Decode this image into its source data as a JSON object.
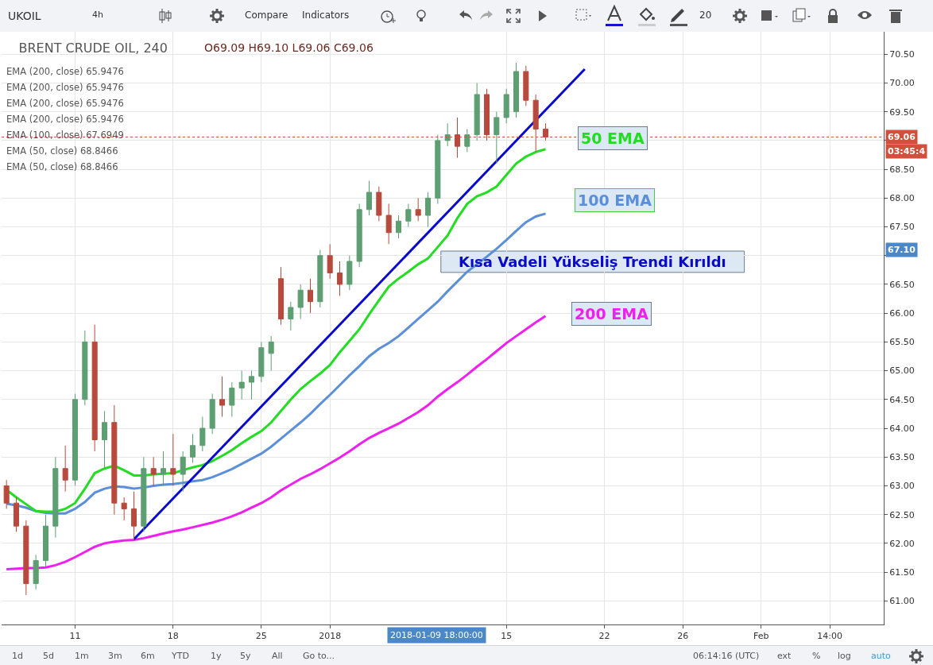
{
  "chart_data": {
    "type": "candlestick",
    "title": "BRENT CRUDE OIL, 240",
    "subtitle": "O69.09 H69.10 L69.06 C69.06",
    "categories": [
      null,
      null,
      null,
      null,
      null,
      null,
      null,
      "11",
      null,
      null,
      null,
      null,
      null,
      null,
      null,
      null,
      null,
      "18",
      null,
      null,
      null,
      null,
      null,
      null,
      null,
      null,
      "25",
      null,
      null,
      null,
      null,
      null,
      null,
      "2018",
      null,
      null,
      null,
      null,
      null,
      null,
      null,
      null,
      null,
      null,
      null,
      null,
      null,
      null,
      null,
      null,
      null,
      "15",
      null,
      null,
      null,
      null,
      null,
      null,
      null,
      null,
      null,
      "22",
      null,
      null,
      null,
      null,
      null,
      null,
      null,
      "26",
      null,
      null,
      null,
      null,
      null,
      null,
      null,
      "Feb",
      null,
      null,
      null,
      null,
      null,
      null,
      "14:00",
      null,
      null,
      null,
      null,
      null
    ],
    "ohlc": [
      [
        63.0,
        63.1,
        62.6,
        62.7
      ],
      [
        62.7,
        62.8,
        62.2,
        62.3
      ],
      [
        62.3,
        62.4,
        61.1,
        61.3
      ],
      [
        61.3,
        61.8,
        61.2,
        61.7
      ],
      [
        61.7,
        62.5,
        61.6,
        62.3
      ],
      [
        62.3,
        63.5,
        62.1,
        63.3
      ],
      [
        63.3,
        63.7,
        62.9,
        63.1
      ],
      [
        63.1,
        64.6,
        63.0,
        64.5
      ],
      [
        64.5,
        65.7,
        64.4,
        65.5
      ],
      [
        65.5,
        65.8,
        63.6,
        63.8
      ],
      [
        63.8,
        64.3,
        63.3,
        64.1
      ],
      [
        64.1,
        64.4,
        62.5,
        62.7
      ],
      [
        62.7,
        62.8,
        62.4,
        62.6
      ],
      [
        62.6,
        62.9,
        62.05,
        62.3
      ],
      [
        62.3,
        63.5,
        62.2,
        63.3
      ],
      [
        63.3,
        63.5,
        63.0,
        63.2
      ],
      [
        63.2,
        63.6,
        63.0,
        63.3
      ],
      [
        63.3,
        63.9,
        63.0,
        63.2
      ],
      [
        63.2,
        63.6,
        62.9,
        63.5
      ],
      [
        63.5,
        63.9,
        63.4,
        63.7
      ],
      [
        63.7,
        64.2,
        63.6,
        64.0
      ],
      [
        64.0,
        64.6,
        63.9,
        64.5
      ],
      [
        64.5,
        64.9,
        64.2,
        64.4
      ],
      [
        64.4,
        64.8,
        64.2,
        64.7
      ],
      [
        64.7,
        65.0,
        64.5,
        64.8
      ],
      [
        64.8,
        65.0,
        64.5,
        64.9
      ],
      [
        64.9,
        65.5,
        64.8,
        65.4
      ],
      [
        65.3,
        65.6,
        65.0,
        65.5
      ],
      [
        66.6,
        66.8,
        65.8,
        65.9
      ],
      [
        65.9,
        66.2,
        65.7,
        66.1
      ],
      [
        66.1,
        66.5,
        65.9,
        66.4
      ],
      [
        66.4,
        66.6,
        66.0,
        66.2
      ],
      [
        66.2,
        67.1,
        66.1,
        67.0
      ],
      [
        67.0,
        67.2,
        66.6,
        66.7
      ],
      [
        66.7,
        66.9,
        66.3,
        66.5
      ],
      [
        66.5,
        67.0,
        66.4,
        66.9
      ],
      [
        66.9,
        67.9,
        66.8,
        67.8
      ],
      [
        67.8,
        68.3,
        67.7,
        68.1
      ],
      [
        68.1,
        68.2,
        67.6,
        67.7
      ],
      [
        67.7,
        67.9,
        67.2,
        67.4
      ],
      [
        67.4,
        67.7,
        67.3,
        67.6
      ],
      [
        67.6,
        67.9,
        67.5,
        67.8
      ],
      [
        67.8,
        68.0,
        67.6,
        67.7
      ],
      [
        67.7,
        68.1,
        67.5,
        68.0
      ],
      [
        68.0,
        69.1,
        67.9,
        69.0
      ],
      [
        69.0,
        69.3,
        68.9,
        69.1
      ],
      [
        69.1,
        69.4,
        68.7,
        68.9
      ],
      [
        68.9,
        69.2,
        68.8,
        69.1
      ],
      [
        69.1,
        70.0,
        69.0,
        69.8
      ],
      [
        69.8,
        69.9,
        69.0,
        69.1
      ],
      [
        69.1,
        69.5,
        68.6,
        69.4
      ],
      [
        69.4,
        69.9,
        69.3,
        69.8
      ],
      [
        69.5,
        70.35,
        69.4,
        70.2
      ],
      [
        70.2,
        70.3,
        69.6,
        69.7
      ],
      [
        69.7,
        69.8,
        68.8,
        69.2
      ],
      [
        69.2,
        69.3,
        69.0,
        69.06
      ],
      null,
      null,
      null,
      null,
      null,
      null,
      null,
      null,
      null,
      null,
      null,
      null,
      null,
      null,
      null,
      null,
      null,
      null,
      null,
      null,
      null,
      null,
      null,
      null,
      null,
      null,
      null,
      null,
      null,
      null,
      null,
      null,
      null,
      null
    ],
    "colors": [
      "#b84a3d",
      "#b84a3d",
      "#b84a3d",
      "#5d9e72",
      "#5d9e72",
      "#5d9e72",
      "#b84a3d",
      "#5d9e72",
      "#5d9e72",
      "#b84a3d",
      "#5d9e72",
      "#b84a3d",
      "#b84a3d",
      "#b84a3d",
      "#5d9e72",
      "#b84a3d",
      "#5d9e72",
      "#b84a3d",
      "#5d9e72",
      "#5d9e72",
      "#5d9e72",
      "#5d9e72",
      "#b84a3d",
      "#5d9e72",
      "#5d9e72",
      "#5d9e72",
      "#5d9e72",
      "#5d9e72",
      "#b84a3d",
      "#5d9e72",
      "#5d9e72",
      "#b84a3d",
      "#5d9e72",
      "#b84a3d",
      "#b84a3d",
      "#5d9e72",
      "#5d9e72",
      "#5d9e72",
      "#b84a3d",
      "#b84a3d",
      "#5d9e72",
      "#5d9e72",
      "#b84a3d",
      "#5d9e72",
      "#5d9e72",
      "#5d9e72",
      "#b84a3d",
      "#5d9e72",
      "#5d9e72",
      "#b84a3d",
      "#5d9e72",
      "#5d9e72",
      "#5d9e72",
      "#b84a3d",
      "#b84a3d",
      "#b84a3d",
      null,
      null,
      null,
      null,
      null,
      null,
      null,
      null,
      null,
      null,
      null,
      null,
      null,
      null,
      null,
      null,
      null,
      null,
      null,
      null,
      null,
      null,
      null,
      null,
      null,
      null,
      null,
      null,
      null,
      null,
      null,
      null,
      null,
      null
    ],
    "series": [
      {
        "type": "line",
        "name": "200 EMA",
        "color": "#f01ff0",
        "values": [
          61.55,
          61.56,
          61.57,
          61.57,
          61.58,
          61.62,
          61.68,
          61.76,
          61.85,
          61.94,
          62.0,
          62.03,
          62.05,
          62.06,
          62.09,
          62.13,
          62.17,
          62.21,
          62.24,
          62.28,
          62.32,
          62.36,
          62.41,
          62.47,
          62.54,
          62.62,
          62.7,
          62.8,
          62.92,
          63.02,
          63.12,
          63.2,
          63.29,
          63.39,
          63.49,
          63.6,
          63.72,
          63.83,
          63.92,
          64.0,
          64.08,
          64.18,
          64.28,
          64.4,
          64.55,
          64.68,
          64.8,
          64.93,
          65.07,
          65.2,
          65.34,
          65.48,
          65.6,
          65.72,
          65.84,
          65.95,
          null,
          null,
          null,
          null,
          null,
          null,
          null,
          null,
          null,
          null,
          null,
          null,
          null,
          null,
          null,
          null,
          null,
          null,
          null,
          null,
          null,
          null,
          null,
          null,
          null,
          null,
          null,
          null,
          null,
          null,
          null,
          null,
          null,
          null
        ]
      },
      {
        "type": "line",
        "name": "100 EMA",
        "color": "#5b8fd9",
        "values": [
          62.69,
          62.66,
          62.62,
          62.56,
          62.53,
          62.52,
          62.52,
          62.6,
          62.72,
          62.88,
          62.95,
          62.99,
          62.98,
          62.95,
          62.97,
          63.0,
          63.02,
          63.03,
          63.05,
          63.08,
          63.1,
          63.15,
          63.22,
          63.29,
          63.38,
          63.47,
          63.56,
          63.68,
          63.82,
          63.96,
          64.1,
          64.25,
          64.42,
          64.58,
          64.75,
          64.92,
          65.08,
          65.25,
          65.38,
          65.48,
          65.6,
          65.75,
          65.9,
          66.05,
          66.2,
          66.38,
          66.55,
          66.72,
          66.85,
          66.98,
          67.12,
          67.27,
          67.43,
          67.58,
          67.68,
          67.73,
          null,
          null,
          null,
          null,
          null,
          null,
          null,
          null,
          null,
          null,
          null,
          null,
          null,
          null,
          null,
          null,
          null,
          null,
          null,
          null,
          null,
          null,
          null,
          null,
          null,
          null,
          null,
          null,
          null,
          null,
          null,
          null,
          null,
          null
        ]
      },
      {
        "type": "line",
        "name": "50 EMA",
        "color": "#22dd22",
        "values": [
          62.93,
          62.8,
          62.68,
          62.56,
          62.55,
          62.55,
          62.6,
          62.7,
          62.95,
          63.22,
          63.3,
          63.35,
          63.27,
          63.18,
          63.18,
          63.2,
          63.21,
          63.22,
          63.27,
          63.32,
          63.36,
          63.43,
          63.52,
          63.62,
          63.74,
          63.85,
          63.95,
          64.1,
          64.3,
          64.5,
          64.68,
          64.82,
          64.95,
          65.1,
          65.32,
          65.52,
          65.72,
          65.98,
          66.22,
          66.46,
          66.6,
          66.72,
          66.85,
          66.95,
          67.15,
          67.35,
          67.65,
          67.9,
          68.03,
          68.1,
          68.2,
          68.4,
          68.6,
          68.72,
          68.8,
          68.85,
          null,
          null,
          null,
          null,
          null,
          null,
          null,
          null,
          null,
          null,
          null,
          null,
          null,
          null,
          null,
          null,
          null,
          null,
          null,
          null,
          null,
          null,
          null,
          null,
          null,
          null,
          null,
          null,
          null,
          null,
          null,
          null,
          null,
          null
        ]
      },
      {
        "type": "line",
        "color": "#0a0acc",
        "values": [
          null,
          null,
          null,
          null,
          null,
          null,
          null,
          null,
          null,
          null,
          null,
          null,
          null,
          62.07,
          null,
          null,
          null,
          null,
          null,
          null,
          null,
          null,
          null,
          null,
          null,
          null,
          null,
          null,
          null,
          null,
          null,
          null,
          null,
          null,
          null,
          null,
          null,
          null,
          null,
          null,
          null,
          null,
          null,
          null,
          null,
          null,
          null,
          null,
          null,
          null,
          null,
          null,
          null,
          null,
          null,
          null,
          null,
          null,
          null,
          70.24,
          null,
          null,
          null,
          null,
          null,
          null,
          null,
          null,
          null,
          null,
          null,
          null,
          null,
          null,
          null,
          null,
          null,
          null,
          null,
          null,
          null,
          null,
          null,
          null,
          null,
          null,
          null,
          null,
          null,
          null
        ]
      }
    ],
    "ylim": [
      60.59,
      70.89
    ],
    "yticks": [
      {
        "value": 61,
        "label": "61.00"
      },
      {
        "value": 61.5,
        "label": "61.50"
      },
      {
        "value": 62,
        "label": "62.00"
      },
      {
        "value": 62.5,
        "label": "62.50"
      },
      {
        "value": 63,
        "label": "63.00"
      },
      {
        "value": 63.5,
        "label": "63.50"
      },
      {
        "value": 64,
        "label": "64.00"
      },
      {
        "value": 64.5,
        "label": "64.50"
      },
      {
        "value": 65,
        "label": "65.00"
      },
      {
        "value": 65.5,
        "label": "65.50"
      },
      {
        "value": 66,
        "label": "66.00"
      },
      {
        "value": 66.5,
        "label": "66.50"
      },
      {
        "value": 67,
        "label": null
      },
      {
        "value": 67.5,
        "label": "67.50"
      },
      {
        "value": 68,
        "label": "68.00"
      },
      {
        "value": 68.5,
        "label": "68.50"
      },
      {
        "value": 69,
        "label": null
      },
      {
        "value": 69.5,
        "label": "69.50"
      },
      {
        "value": 70,
        "label": "70.00"
      },
      {
        "value": 70.5,
        "label": "70.50"
      }
    ],
    "ref_lines": [
      {
        "axis": "y",
        "value": 69.06,
        "label": "69.06",
        "color": "#d0503c",
        "line_style": "dotted"
      }
    ],
    "grid": true,
    "legend": false,
    "annotations": [
      "EMA (200, close) 65.9476",
      "EMA (200, close) 65.9476",
      "EMA (200, close) 65.9476",
      "EMA (200, close) 65.9476",
      "EMA (100, close) 67.6949",
      "EMA (50, close) 68.8466",
      "EMA (50, close) 68.8466",
      "Kısa Vadeli Yükseliş Trendi Kırıldı",
      {
        "text": "67.10",
        "y": 67.1
      },
      "03:45:4",
      "2018-01-09 18:00:00",
      "UKOIL",
      "4h",
      "Compare",
      "Indicators",
      "20",
      "1d",
      "5d",
      "1m",
      "3m",
      "6m",
      "YTD",
      "1y",
      "5y",
      "All",
      "Go to...",
      "06:14:16 (UTC)",
      "ext",
      "%",
      "log",
      "auto"
    ]
  }
}
